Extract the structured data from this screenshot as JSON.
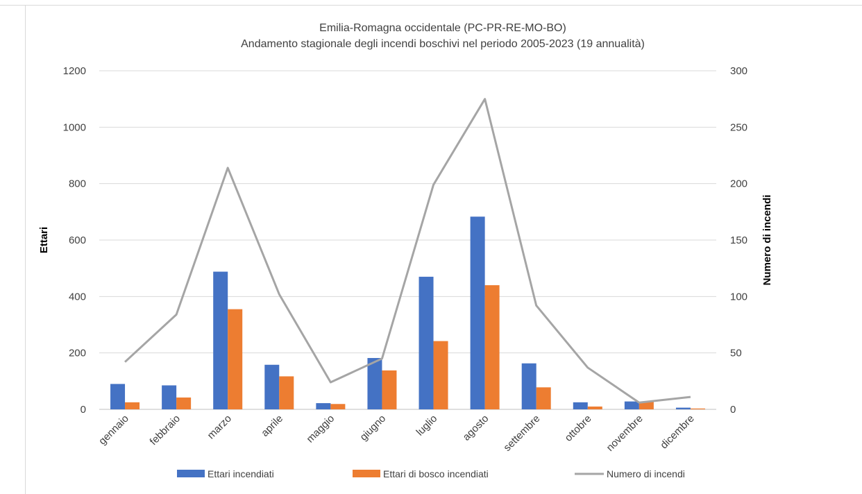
{
  "chart_data": {
    "type": "bar",
    "title": "Emilia-Romagna occidentale (PC-PR-RE-MO-BO)",
    "subtitle": "Andamento stagionale degli incendi boschivi nel periodo 2005-2023 (19 annualità)",
    "categories": [
      "gennaio",
      "febbraio",
      "marzo",
      "aprile",
      "maggio",
      "giugno",
      "luglio",
      "agosto",
      "settembre",
      "ottobre",
      "novembre",
      "dicembre"
    ],
    "ylabel": "Ettari",
    "ylabel_right": "Numero di incendi",
    "ylim": [
      0,
      1200
    ],
    "ylim_right": [
      0,
      300
    ],
    "yticks": [
      "0",
      "200",
      "400",
      "600",
      "800",
      "1000",
      "1200"
    ],
    "yticks_right": [
      "0",
      "50",
      "100",
      "150",
      "200",
      "250",
      "300"
    ],
    "grid": true,
    "legend_position": "bottom",
    "series": [
      {
        "name": "Ettari incendiati",
        "type": "bar",
        "axis": "left",
        "color": "#4472C4",
        "values": [
          90,
          85,
          488,
          158,
          22,
          182,
          470,
          683,
          163,
          25,
          28,
          6
        ]
      },
      {
        "name": "Ettari di bosco incendiati",
        "type": "bar",
        "axis": "left",
        "color": "#ED7D31",
        "values": [
          25,
          42,
          355,
          117,
          19,
          138,
          242,
          440,
          78,
          10,
          27,
          3
        ]
      },
      {
        "name": "Numero di incendi",
        "type": "line",
        "axis": "right",
        "color": "#A5A5A5",
        "values": [
          42,
          84,
          214,
          102,
          24,
          45,
          199,
          275,
          92,
          37,
          6,
          11
        ]
      }
    ]
  }
}
